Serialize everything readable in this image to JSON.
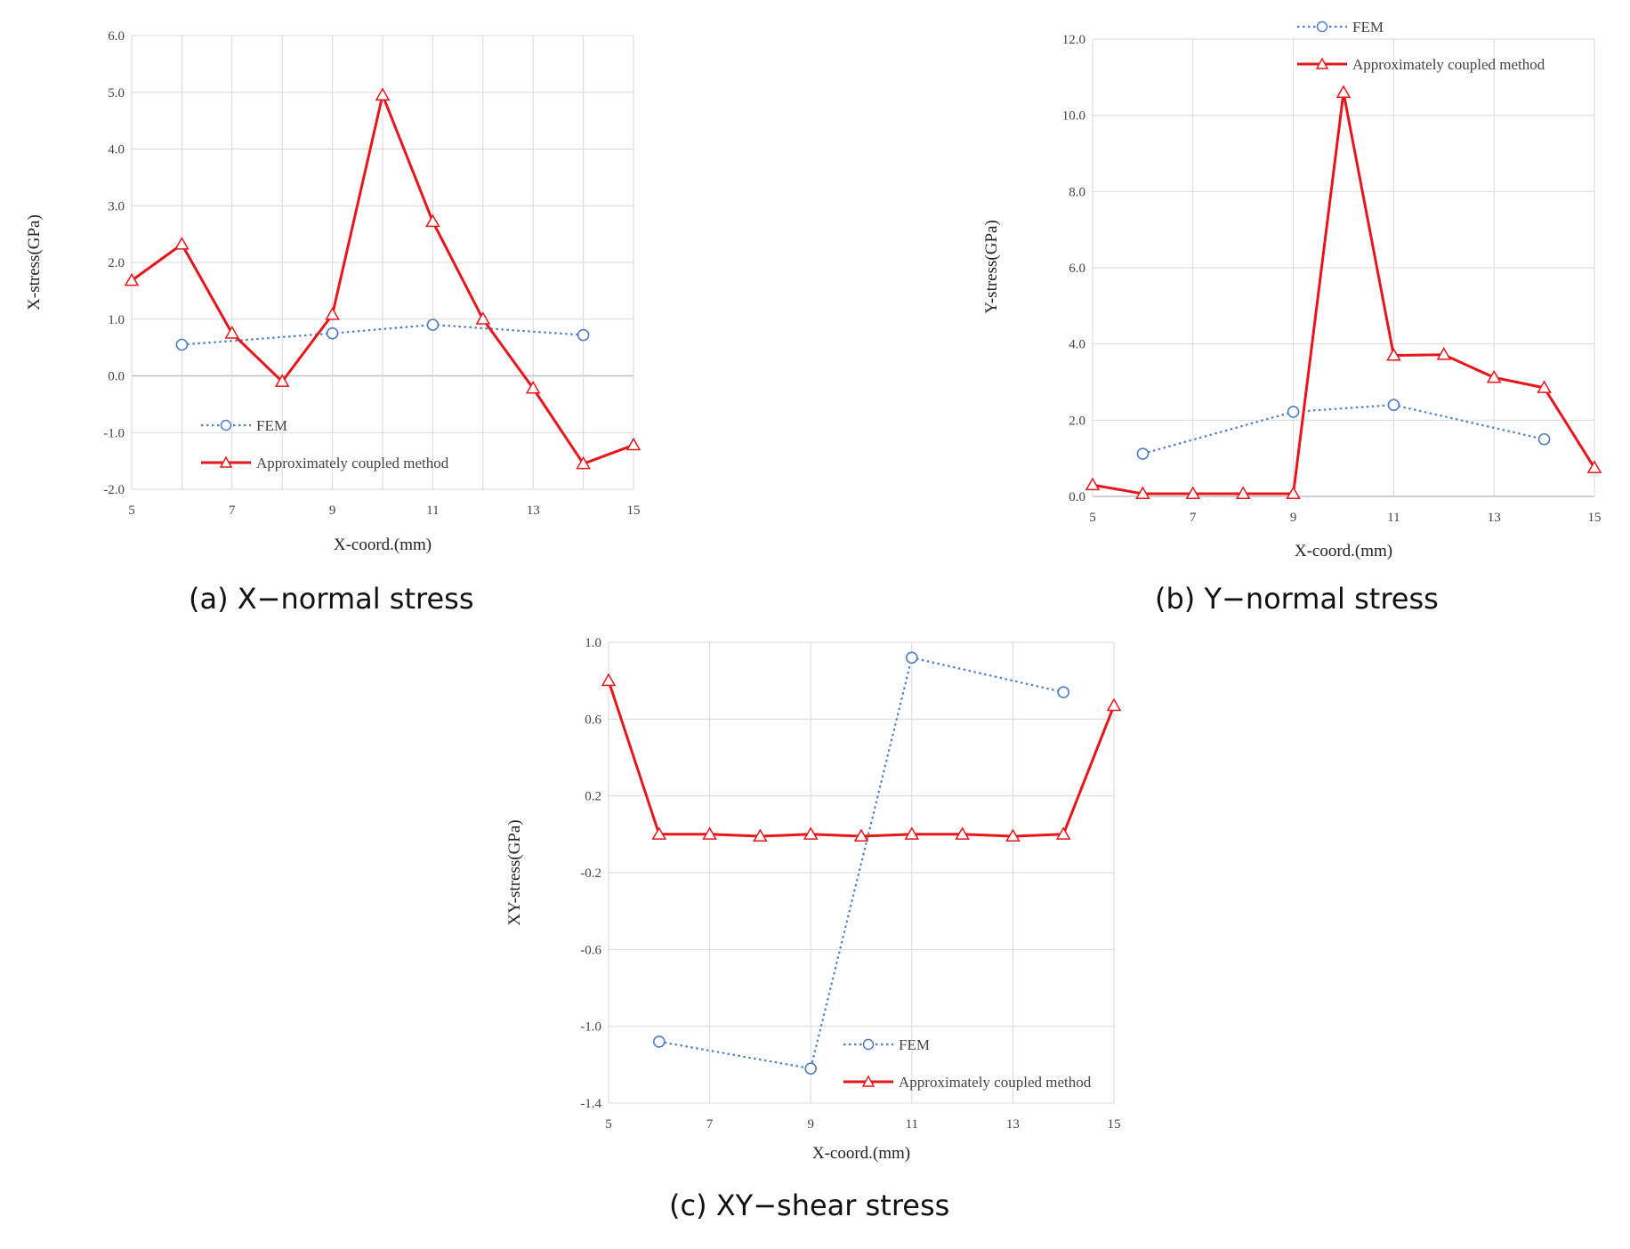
{
  "chart_data": [
    {
      "id": "a",
      "type": "line",
      "caption": "(a) X−normal stress",
      "xlabel": "X-coord.(mm)",
      "ylabel": "X-stress(GPa)",
      "xlim": [
        5,
        15
      ],
      "ylim": [
        -2.0,
        6.0
      ],
      "xticks": [
        5,
        7,
        9,
        11,
        13,
        15
      ],
      "xtick_labels": [
        "5",
        "7",
        "9",
        "11",
        "13",
        "15"
      ],
      "yticks": [
        -2.0,
        -1.0,
        0.0,
        1.0,
        2.0,
        3.0,
        4.0,
        5.0,
        6.0
      ],
      "ytick_labels": [
        "-2.0",
        "-1.0",
        "0.0",
        "1.0",
        "2.0",
        "3.0",
        "4.0",
        "5.0",
        "6.0"
      ],
      "vgrid_x": [
        5,
        6,
        7,
        8,
        9,
        10,
        11,
        12,
        13,
        14,
        15
      ],
      "grid": true,
      "legend_position": "lower-left",
      "series": [
        {
          "name": "FEM",
          "color": "#4f7ec7",
          "style": "dotted",
          "marker": "circle",
          "x": [
            6,
            9,
            11,
            14
          ],
          "y": [
            0.55,
            0.75,
            0.9,
            0.72
          ]
        },
        {
          "name": "Approximately coupled method",
          "color": "#e8161b",
          "style": "solid",
          "marker": "triangle",
          "x": [
            5,
            6,
            7,
            8,
            9,
            10,
            11,
            12,
            13,
            14,
            15
          ],
          "y": [
            1.68,
            2.32,
            0.75,
            -0.1,
            1.08,
            4.95,
            2.72,
            1.0,
            -0.22,
            -1.55,
            -1.22
          ]
        }
      ]
    },
    {
      "id": "b",
      "type": "line",
      "caption": "(b) Y−normal stress",
      "xlabel": "X-coord.(mm)",
      "ylabel": "Y-stress(GPa)",
      "xlim": [
        5,
        15
      ],
      "ylim": [
        0.0,
        12.0
      ],
      "xticks": [
        5,
        7,
        9,
        11,
        13,
        15
      ],
      "xtick_labels": [
        "5",
        "7",
        "9",
        "11",
        "13",
        "15"
      ],
      "yticks": [
        0.0,
        2.0,
        4.0,
        6.0,
        8.0,
        10.0,
        12.0
      ],
      "ytick_labels": [
        "0.0",
        "2.0",
        "4.0",
        "6.0",
        "8.0",
        "10.0",
        "12.0"
      ],
      "vgrid_x": [
        5,
        7,
        9,
        11,
        13,
        15
      ],
      "grid": true,
      "legend_position": "top-center",
      "series": [
        {
          "name": "FEM",
          "color": "#4f7ec7",
          "style": "dotted",
          "marker": "circle",
          "x": [
            6,
            9,
            11,
            14
          ],
          "y": [
            1.12,
            2.22,
            2.4,
            1.5
          ]
        },
        {
          "name": "Approximately coupled method",
          "color": "#e8161b",
          "style": "solid",
          "marker": "triangle",
          "x": [
            5,
            6,
            7,
            8,
            9,
            10,
            11,
            12,
            13,
            14,
            15
          ],
          "y": [
            0.3,
            0.07,
            0.07,
            0.07,
            0.07,
            10.6,
            3.7,
            3.72,
            3.12,
            2.85,
            0.75
          ]
        }
      ]
    },
    {
      "id": "c",
      "type": "line",
      "caption": "(c) XY−shear stress",
      "xlabel": "X-coord.(mm)",
      "ylabel": "XY-stress(GPa)",
      "xlim": [
        5,
        15
      ],
      "ylim": [
        -1.4,
        1.0
      ],
      "xticks": [
        5,
        7,
        9,
        11,
        13,
        15
      ],
      "xtick_labels": [
        "5",
        "7",
        "9",
        "11",
        "13",
        "15"
      ],
      "yticks": [
        -1.4,
        -1.0,
        -0.6,
        -0.2,
        0.2,
        0.6,
        1.0
      ],
      "ytick_labels": [
        "-1.4",
        "-1.0",
        "-0.6",
        "-0.2",
        "0.2",
        "0.6",
        "1.0"
      ],
      "vgrid_x": [
        5,
        7,
        9,
        11,
        13,
        15
      ],
      "grid": true,
      "legend_position": "lower-right",
      "series": [
        {
          "name": "FEM",
          "color": "#4f7ec7",
          "style": "dotted",
          "marker": "circle",
          "x": [
            6,
            9,
            11,
            14
          ],
          "y": [
            -1.08,
            -1.22,
            0.92,
            0.74
          ]
        },
        {
          "name": "Approximately coupled method",
          "color": "#e8161b",
          "style": "solid",
          "marker": "triangle",
          "x": [
            5,
            6,
            7,
            8,
            9,
            10,
            11,
            12,
            13,
            14,
            15
          ],
          "y": [
            0.8,
            0.0,
            0.0,
            -0.01,
            0.0,
            -0.01,
            0.0,
            0.0,
            -0.01,
            0.0,
            0.67
          ]
        }
      ]
    }
  ]
}
